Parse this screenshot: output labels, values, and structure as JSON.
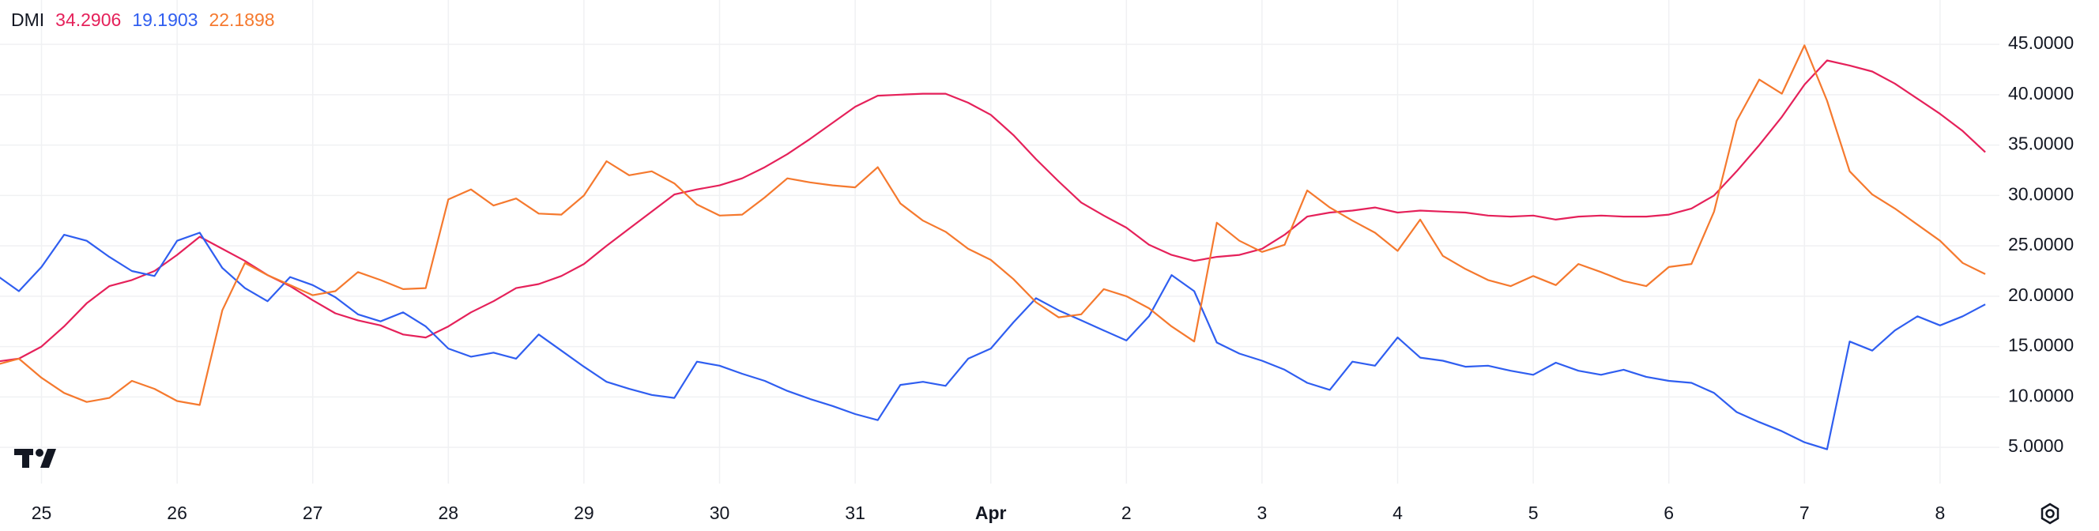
{
  "chart_data": {
    "type": "line",
    "title": "DMI",
    "categories": [
      null,
      null,
      "25",
      null,
      null,
      null,
      null,
      null,
      "26",
      null,
      null,
      null,
      null,
      null,
      "27",
      null,
      null,
      null,
      null,
      null,
      "28",
      null,
      null,
      null,
      null,
      null,
      "29",
      null,
      null,
      null,
      null,
      null,
      "30",
      null,
      null,
      null,
      null,
      null,
      "31",
      null,
      null,
      null,
      null,
      null,
      "Apr",
      null,
      null,
      null,
      null,
      null,
      "2",
      null,
      null,
      null,
      null,
      null,
      "3",
      null,
      null,
      null,
      null,
      null,
      "4",
      null,
      null,
      null,
      null,
      null,
      "5",
      null,
      null,
      null,
      null,
      null,
      "6",
      null,
      null,
      null,
      null,
      null,
      "7",
      null,
      null,
      null,
      null,
      null,
      "8",
      null,
      null
    ],
    "series": [
      {
        "color": "#e5215a",
        "values": [
          13.5,
          13.8,
          15,
          17,
          19.3,
          21,
          21.6,
          22.5,
          24.1,
          25.9,
          24.7,
          23.5,
          22.1,
          21,
          19.6,
          18.3,
          17.6,
          17.1,
          16.2,
          15.9,
          17,
          18.4,
          19.5,
          20.8,
          21.2,
          22,
          23.2,
          25,
          26.7,
          28.4,
          30.1,
          30.6,
          31,
          31.7,
          32.8,
          34.1,
          35.6,
          37.2,
          38.8,
          39.9,
          40,
          40.1,
          40.1,
          39.2,
          38,
          36,
          33.6,
          31.4,
          29.3,
          28,
          26.8,
          25.1,
          24.1,
          23.5,
          23.9,
          24.1,
          24.7,
          26.1,
          27.9,
          28.3,
          28.5,
          28.8,
          28.3,
          28.5,
          28.4,
          28.3,
          28,
          27.9,
          28,
          27.6,
          27.9,
          28,
          27.9,
          27.9,
          28.1,
          28.7,
          30,
          32.4,
          35,
          37.8,
          41,
          43.4,
          42.9,
          42.3,
          41.1,
          39.6,
          38.1,
          36.4,
          34.2906
        ]
      },
      {
        "color": "#2f5ef0",
        "values": [
          22.1,
          20.5,
          22.9,
          26.1,
          25.5,
          23.9,
          22.5,
          22,
          25.5,
          26.3,
          22.8,
          20.8,
          19.5,
          21.9,
          21.1,
          19.9,
          18.2,
          17.5,
          18.4,
          17,
          14.8,
          14,
          14.4,
          13.8,
          16.2,
          14.6,
          13,
          11.5,
          10.8,
          10.2,
          9.9,
          13.5,
          13.1,
          12.3,
          11.6,
          10.6,
          9.8,
          9.1,
          8.3,
          7.7,
          11.2,
          11.5,
          11.1,
          13.8,
          14.8,
          17.4,
          19.8,
          18.6,
          17.6,
          16.6,
          15.6,
          18,
          22.1,
          20.5,
          15.4,
          14.3,
          13.6,
          12.7,
          11.4,
          10.7,
          13.5,
          13.1,
          15.9,
          13.9,
          13.6,
          13,
          13.1,
          12.6,
          12.2,
          13.4,
          12.6,
          12.2,
          12.7,
          12,
          11.6,
          11.4,
          10.4,
          8.5,
          7.5,
          6.6,
          5.5,
          4.8,
          15.5,
          14.6,
          16.6,
          18,
          17.1,
          18,
          19.1903
        ]
      },
      {
        "color": "#f5792e",
        "values": [
          13.2,
          13.8,
          11.9,
          10.4,
          9.5,
          9.9,
          11.6,
          10.8,
          9.6,
          9.2,
          18.6,
          23.3,
          22.1,
          21.1,
          20.1,
          20.5,
          22.4,
          21.6,
          20.7,
          20.8,
          29.6,
          30.6,
          29,
          29.7,
          28.2,
          28.1,
          30,
          33.4,
          32,
          32.4,
          31.2,
          29.1,
          28,
          28.1,
          29.8,
          31.7,
          31.3,
          31,
          30.8,
          32.8,
          29.2,
          27.5,
          26.4,
          24.7,
          23.6,
          21.7,
          19.4,
          17.9,
          18.2,
          20.7,
          20,
          18.8,
          17,
          15.5,
          27.3,
          25.5,
          24.4,
          25.1,
          30.5,
          28.8,
          27.5,
          26.3,
          24.5,
          27.6,
          24,
          22.7,
          21.6,
          21,
          22,
          21.1,
          23.2,
          22.4,
          21.5,
          21,
          22.9,
          23.2,
          28.4,
          37.4,
          41.5,
          40.1,
          44.9,
          39.4,
          32.4,
          30.1,
          28.7,
          27.1,
          25.5,
          23.3,
          22.1898
        ]
      }
    ],
    "ylim": [
      1.4,
      49.4
    ],
    "yticks": [
      {
        "value": 5,
        "label": "5.0000"
      },
      {
        "value": 10,
        "label": "10.0000"
      },
      {
        "value": 15,
        "label": "15.0000"
      },
      {
        "value": 20,
        "label": "20.0000"
      },
      {
        "value": 25,
        "label": "25.0000"
      },
      {
        "value": 30,
        "label": "30.0000"
      },
      {
        "value": 35,
        "label": "35.0000"
      },
      {
        "value": 40,
        "label": "40.0000"
      },
      {
        "value": 45,
        "label": "45.0000"
      }
    ],
    "grid": true
  }
}
